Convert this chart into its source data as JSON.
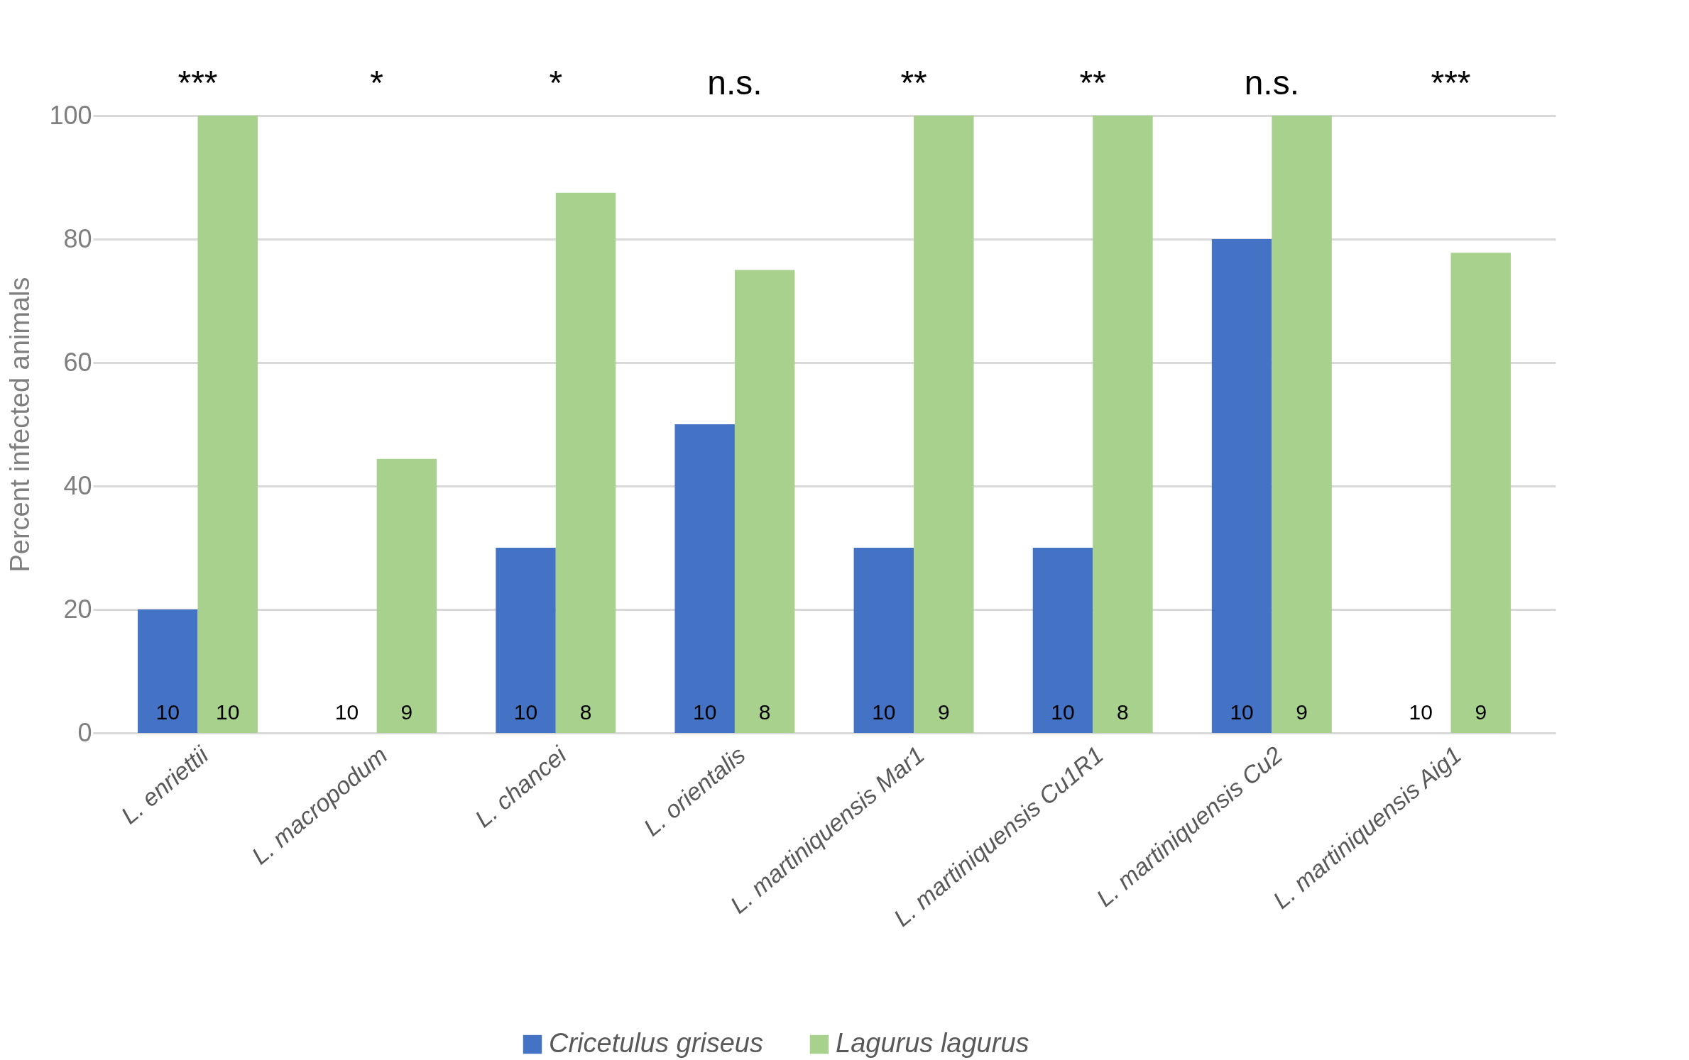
{
  "chart_data": {
    "type": "bar",
    "ylabel": "Percent infected animals",
    "categories": [
      "L. enriettii",
      "L. macropodum",
      "L. chancei",
      "L. orientalis",
      "L. martiniquensis Mar1",
      "L. martiniquensis Cu1R1",
      "L. martiniquensis Cu2",
      "L. martiniquensis Aig1"
    ],
    "series": [
      {
        "name": "Cricetulus griseus",
        "color": "#4472c4",
        "values": [
          20,
          0,
          30,
          50,
          30,
          30,
          80,
          0
        ]
      },
      {
        "name": "Lagurus lagurus",
        "color": "#a9d18e",
        "values": [
          100,
          44.4,
          87.5,
          75,
          100,
          100,
          100,
          77.8
        ]
      }
    ],
    "ylim": [
      0,
      100
    ],
    "yticks": [
      0,
      20,
      40,
      60,
      80,
      100
    ],
    "grid": "y",
    "legend": "bottom",
    "annotations": [
      "***",
      "*",
      "*",
      "n.s.",
      "**",
      "**",
      "n.s.",
      "***",
      "10",
      "10",
      "10",
      "10",
      "10",
      "10",
      "10",
      "10",
      "10",
      "9",
      "8",
      "8",
      "9",
      "8",
      "9",
      "9"
    ]
  }
}
